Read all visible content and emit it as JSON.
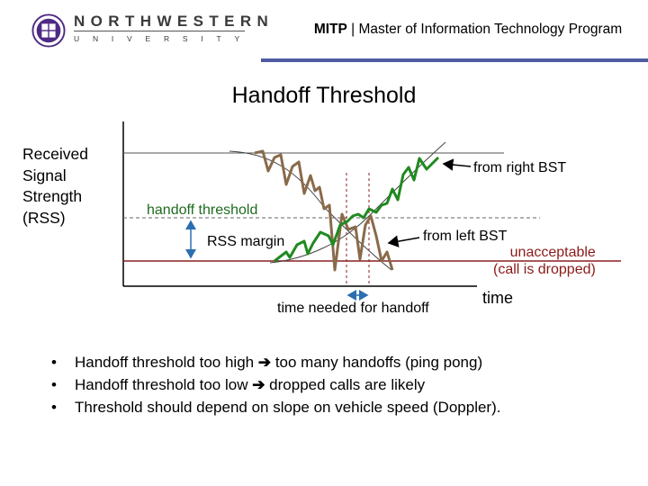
{
  "header": {
    "logo_line1": "NORTHWESTERN",
    "logo_line2": "UNIVERSITY",
    "title_bold": "MITP",
    "title_rest": " | Master of Information Technology Program"
  },
  "slide_title": "Handoff Threshold",
  "diagram": {
    "y_axis_label": "Received Signal Strength (RSS)",
    "x_axis_label": "time",
    "from_right_label": "from right BST",
    "from_left_label": "from left BST",
    "threshold_label": "handoff threshold",
    "margin_label": "RSS margin",
    "unacceptable_label_line1": "unacceptable",
    "unacceptable_label_line2": "(call is dropped)",
    "time_needed_label": "time needed for handoff",
    "colors": {
      "green_curve": "#1f8a1f",
      "brown_curve": "#8a6a4a",
      "unacceptable_line": "#8b2020",
      "header_rule": "#4e5aa2"
    }
  },
  "bullets": [
    {
      "before": "Handoff threshold too high ",
      "arrow": "➔",
      "after": " too many handoffs (ping pong)"
    },
    {
      "before": "Handoff threshold too low ",
      "arrow": "➔",
      "after": " dropped calls are likely"
    },
    {
      "before": "Threshold should depend on slope on vehicle speed (Doppler).",
      "arrow": "",
      "after": ""
    }
  ]
}
